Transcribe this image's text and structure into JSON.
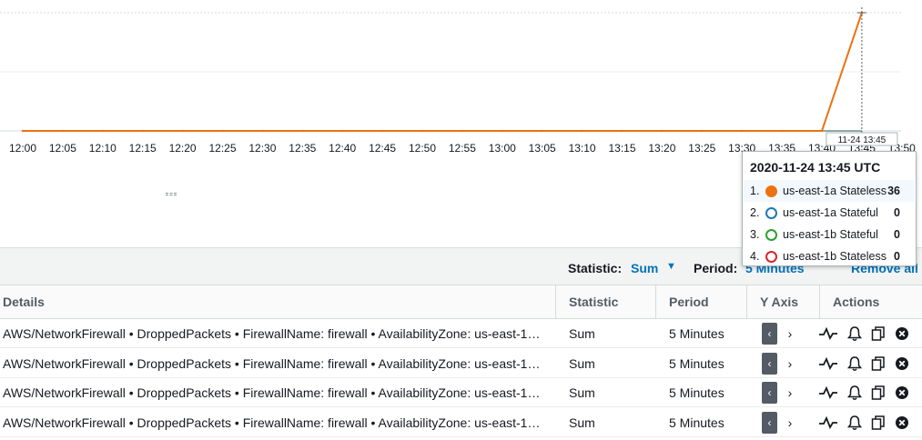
{
  "chart_data": {
    "type": "line",
    "x": [
      "12:00",
      "12:05",
      "12:10",
      "12:15",
      "12:20",
      "12:25",
      "12:30",
      "12:35",
      "12:40",
      "12:45",
      "12:50",
      "12:55",
      "13:00",
      "13:05",
      "13:10",
      "13:15",
      "13:20",
      "13:25",
      "13:30",
      "13:35",
      "13:40",
      "13:45"
    ],
    "tick_labels": [
      "12:00",
      "12:05",
      "12:10",
      "12:15",
      "12:20",
      "12:25",
      "12:30",
      "12:35",
      "12:40",
      "12:45",
      "12:50",
      "12:55",
      "13:00",
      "13:05",
      "13:10",
      "13:15",
      "13:20",
      "13:25",
      "13:30",
      "13:35",
      "13:40",
      "13:45",
      "13:50"
    ],
    "series": [
      {
        "name": "us-east-1a Stateless",
        "color": "#ec7211",
        "values": [
          0,
          0,
          0,
          0,
          0,
          0,
          0,
          0,
          0,
          0,
          0,
          0,
          0,
          0,
          0,
          0,
          0,
          0,
          0,
          0,
          0,
          36
        ]
      },
      {
        "name": "us-east-1a Stateful",
        "color": "#1f77b4",
        "values": [
          0,
          0,
          0,
          0,
          0,
          0,
          0,
          0,
          0,
          0,
          0,
          0,
          0,
          0,
          0,
          0,
          0,
          0,
          0,
          0,
          0,
          0
        ]
      },
      {
        "name": "us-east-1b Stateful",
        "color": "#2ca02c",
        "values": [
          0,
          0,
          0,
          0,
          0,
          0,
          0,
          0,
          0,
          0,
          0,
          0,
          0,
          0,
          0,
          0,
          0,
          0,
          0,
          0,
          0,
          0
        ]
      },
      {
        "name": "us-east-1b Stateless",
        "color": "#d62728",
        "values": [
          0,
          0,
          0,
          0,
          0,
          0,
          0,
          0,
          0,
          0,
          0,
          0,
          0,
          0,
          0,
          0,
          0,
          0,
          0,
          0,
          0,
          0
        ]
      }
    ],
    "ylim": [
      0,
      36
    ],
    "grid": true,
    "crosshair_label": "11-24 13:45"
  },
  "tooltip": {
    "title": "2020-11-24 13:45 UTC",
    "rows": [
      {
        "index": "1.",
        "name": "us-east-1a Stateless",
        "value": "36",
        "color": "#ec7211",
        "filled": true
      },
      {
        "index": "2.",
        "name": "us-east-1a Stateful",
        "value": "0",
        "color": "#1f77b4",
        "filled": false
      },
      {
        "index": "3.",
        "name": "us-east-1b Stateful",
        "value": "0",
        "color": "#2ca02c",
        "filled": false
      },
      {
        "index": "4.",
        "name": "us-east-1b Stateless",
        "value": "0",
        "color": "#d62728",
        "filled": false
      }
    ]
  },
  "toolbar": {
    "statistic_label": "Statistic:",
    "statistic_value": "Sum",
    "period_label": "Period:",
    "period_value": "5 Minutes",
    "remove_all": "Remove all"
  },
  "table": {
    "headers": {
      "details": "Details",
      "statistic": "Statistic",
      "period": "Period",
      "y_axis": "Y Axis",
      "actions": "Actions"
    },
    "rows": [
      {
        "details": "AWS/NetworkFirewall • DroppedPackets • FirewallName: firewall • AvailabilityZone: us-east-1…",
        "statistic": "Sum",
        "period": "5 Minutes"
      },
      {
        "details": "AWS/NetworkFirewall • DroppedPackets • FirewallName: firewall • AvailabilityZone: us-east-1…",
        "statistic": "Sum",
        "period": "5 Minutes"
      },
      {
        "details": "AWS/NetworkFirewall • DroppedPackets • FirewallName: firewall • AvailabilityZone: us-east-1…",
        "statistic": "Sum",
        "period": "5 Minutes"
      },
      {
        "details": "AWS/NetworkFirewall • DroppedPackets • FirewallName: firewall • AvailabilityZone: us-east-1…",
        "statistic": "Sum",
        "period": "5 Minutes"
      }
    ],
    "yaxis_left_glyph": "‹",
    "yaxis_right_glyph": "›",
    "action_icons": [
      "graph-icon",
      "bell-icon",
      "copy-icon",
      "remove-icon"
    ]
  }
}
